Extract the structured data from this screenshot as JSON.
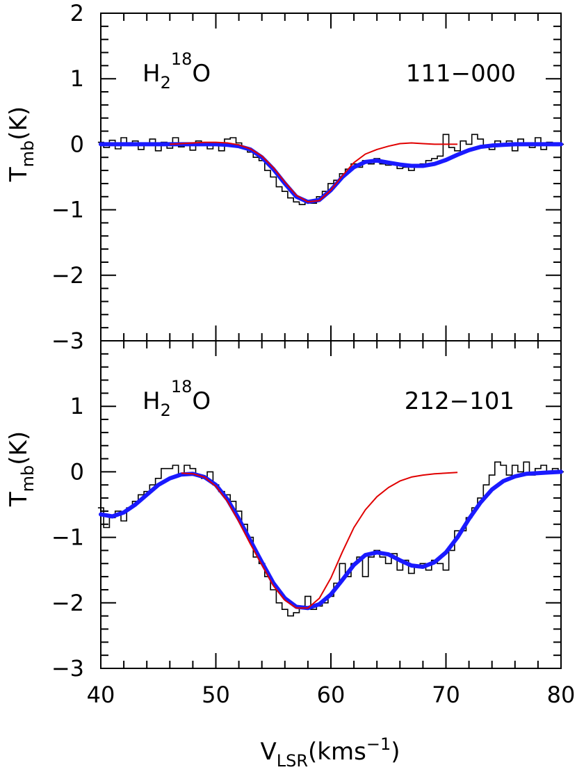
{
  "figure": {
    "xlabel": {
      "main": "V",
      "sub": "LSR",
      "paren_open": "(kms",
      "sup": "−1",
      "paren_close": ")"
    },
    "ylabel": {
      "main": "T",
      "sub": "mb",
      "rest": "(K)"
    },
    "x_tick_labels": [
      "40",
      "50",
      "60",
      "70",
      "80"
    ],
    "colors": {
      "observed": "#000000",
      "fit_total": "#1a1aff",
      "fit_component": "#e00000",
      "frame": "#000000"
    }
  },
  "chart_data": [
    {
      "type": "line",
      "panel": "top",
      "molecule": {
        "base": "H",
        "sub": "2",
        "sup": "18",
        "tail": "O"
      },
      "transition": "111−000",
      "xlim": [
        40,
        80
      ],
      "ylim": [
        -3,
        2
      ],
      "y_tick_labels": [
        "2",
        "1",
        "0",
        "−1",
        "−2",
        "−3"
      ],
      "y_ticks": [
        2,
        1,
        0,
        -1,
        -2,
        -3
      ],
      "series": [
        {
          "style": "histogram",
          "x": [
            40,
            40.5,
            41,
            41.5,
            42,
            42.5,
            43,
            43.5,
            44,
            44.5,
            45,
            45.5,
            46,
            46.5,
            47,
            47.5,
            48,
            48.5,
            49,
            49.5,
            50,
            50.5,
            51,
            51.5,
            52,
            52.5,
            53,
            53.5,
            54,
            54.5,
            55,
            55.5,
            56,
            56.5,
            57,
            57.5,
            58,
            58.5,
            59,
            59.5,
            60,
            60.5,
            61,
            61.5,
            62,
            62.5,
            63,
            63.5,
            64,
            64.5,
            65,
            65.5,
            66,
            66.5,
            67,
            67.5,
            68,
            68.5,
            69,
            69.5,
            70,
            70.5,
            71,
            71.5,
            72,
            72.5,
            73,
            73.5,
            74,
            74.5,
            75,
            75.5,
            76,
            76.5,
            77,
            77.5,
            78,
            78.5,
            79,
            79.5,
            80
          ],
          "y": [
            0.03,
            -0.05,
            0.06,
            -0.07,
            0.1,
            -0.02,
            0.05,
            -0.08,
            0.0,
            0.08,
            -0.1,
            0.03,
            -0.06,
            0.1,
            -0.04,
            0.02,
            -0.09,
            0.05,
            0.0,
            -0.07,
            0.02,
            -0.1,
            0.08,
            0.1,
            0.02,
            -0.05,
            -0.12,
            -0.2,
            -0.25,
            -0.4,
            -0.5,
            -0.65,
            -0.72,
            -0.82,
            -0.88,
            -0.92,
            -0.88,
            -0.9,
            -0.8,
            -0.72,
            -0.6,
            -0.55,
            -0.45,
            -0.38,
            -0.3,
            -0.35,
            -0.25,
            -0.3,
            -0.22,
            -0.3,
            -0.32,
            -0.28,
            -0.37,
            -0.35,
            -0.4,
            -0.33,
            -0.3,
            -0.25,
            -0.22,
            -0.18,
            0.15,
            -0.05,
            -0.1,
            0.05,
            0.0,
            0.15,
            0.08,
            -0.05,
            -0.08,
            0.05,
            -0.02,
            0.05,
            -0.1,
            0.08,
            0.0,
            -0.05,
            0.1,
            -0.08,
            0.03,
            -0.02,
            0.0
          ]
        },
        {
          "style": "fit-total",
          "x": [
            40,
            41,
            42,
            43,
            44,
            45,
            46,
            47,
            48,
            49,
            50,
            51,
            52,
            53,
            54,
            55,
            56,
            57,
            58,
            59,
            60,
            61,
            62,
            63,
            64,
            65,
            66,
            67,
            68,
            69,
            70,
            71,
            72,
            73,
            74,
            75,
            76,
            77,
            78,
            79,
            80
          ],
          "y": [
            0,
            0,
            0,
            0,
            0,
            0,
            0,
            0,
            0,
            0,
            0,
            -0.01,
            -0.03,
            -0.08,
            -0.2,
            -0.38,
            -0.6,
            -0.8,
            -0.88,
            -0.85,
            -0.7,
            -0.5,
            -0.35,
            -0.27,
            -0.25,
            -0.28,
            -0.31,
            -0.33,
            -0.33,
            -0.3,
            -0.24,
            -0.16,
            -0.09,
            -0.04,
            -0.02,
            -0.01,
            0,
            0,
            0,
            0,
            0
          ]
        },
        {
          "style": "fit-component",
          "x": [
            46,
            47,
            48,
            49,
            50,
            51,
            52,
            53,
            54,
            55,
            56,
            57,
            58,
            59,
            60,
            61,
            62,
            63,
            64,
            65,
            66,
            67,
            68,
            69,
            70,
            71
          ],
          "y": [
            0.0,
            0.01,
            0.02,
            0.03,
            0.03,
            0.02,
            -0.01,
            -0.07,
            -0.18,
            -0.36,
            -0.58,
            -0.78,
            -0.88,
            -0.86,
            -0.7,
            -0.48,
            -0.28,
            -0.15,
            -0.08,
            -0.03,
            0.01,
            0.02,
            0.01,
            0.0,
            0.0,
            0.0
          ]
        }
      ]
    },
    {
      "type": "line",
      "panel": "bottom",
      "molecule": {
        "base": "H",
        "sub": "2",
        "sup": "18",
        "tail": "O"
      },
      "transition": "212−101",
      "xlim": [
        40,
        80
      ],
      "ylim": [
        -3,
        2
      ],
      "y_tick_labels": [
        "1",
        "0",
        "−1",
        "−2",
        "−3"
      ],
      "y_ticks": [
        1,
        0,
        -1,
        -2,
        -3
      ],
      "series": [
        {
          "style": "histogram",
          "x": [
            40,
            40.5,
            41,
            41.5,
            42,
            42.5,
            43,
            43.5,
            44,
            44.5,
            45,
            45.5,
            46,
            46.5,
            47,
            47.5,
            48,
            48.5,
            49,
            49.5,
            50,
            50.5,
            51,
            51.5,
            52,
            52.5,
            53,
            53.5,
            54,
            54.5,
            55,
            55.5,
            56,
            56.5,
            57,
            57.5,
            58,
            58.5,
            59,
            59.5,
            60,
            60.5,
            61,
            61.5,
            62,
            62.5,
            63,
            63.5,
            64,
            64.5,
            65,
            65.5,
            66,
            66.5,
            67,
            67.5,
            68,
            68.5,
            69,
            69.5,
            70,
            70.5,
            71,
            71.5,
            72,
            72.5,
            73,
            73.5,
            74,
            74.5,
            75,
            75.5,
            76,
            76.5,
            77,
            77.5,
            78,
            78.5,
            79,
            79.5,
            80
          ],
          "y": [
            -0.55,
            -0.85,
            -0.7,
            -0.6,
            -0.75,
            -0.55,
            -0.45,
            -0.35,
            -0.3,
            -0.2,
            -0.1,
            0.05,
            0.05,
            0.1,
            -0.05,
            0.1,
            0.05,
            -0.05,
            -0.1,
            0.0,
            -0.2,
            -0.3,
            -0.35,
            -0.45,
            -0.6,
            -0.8,
            -1.0,
            -1.3,
            -1.4,
            -1.6,
            -1.8,
            -2.0,
            -2.1,
            -2.2,
            -2.15,
            -2.05,
            -1.9,
            -2.1,
            -2.05,
            -2.0,
            -1.9,
            -1.7,
            -1.4,
            -1.6,
            -1.4,
            -1.3,
            -1.6,
            -1.3,
            -1.2,
            -1.3,
            -1.4,
            -1.25,
            -1.5,
            -1.35,
            -1.55,
            -1.45,
            -1.4,
            -1.5,
            -1.35,
            -1.4,
            -1.5,
            -1.2,
            -0.9,
            -0.9,
            -0.7,
            -0.55,
            -0.4,
            -0.2,
            -0.05,
            0.15,
            0.1,
            -0.05,
            0.1,
            0.0,
            0.15,
            -0.05,
            0.05,
            0.1,
            0.0,
            0.05,
            0.0
          ]
        },
        {
          "style": "fit-total",
          "x": [
            40,
            41,
            42,
            43,
            44,
            45,
            46,
            47,
            48,
            49,
            50,
            51,
            52,
            53,
            54,
            55,
            56,
            57,
            58,
            59,
            60,
            61,
            62,
            63,
            64,
            65,
            66,
            67,
            68,
            69,
            70,
            71,
            72,
            73,
            74,
            75,
            76,
            77,
            78,
            79,
            80
          ],
          "y": [
            -0.65,
            -0.68,
            -0.62,
            -0.5,
            -0.35,
            -0.2,
            -0.1,
            -0.04,
            -0.03,
            -0.08,
            -0.2,
            -0.42,
            -0.72,
            -1.05,
            -1.38,
            -1.7,
            -1.93,
            -2.06,
            -2.08,
            -2.02,
            -1.87,
            -1.65,
            -1.42,
            -1.27,
            -1.23,
            -1.26,
            -1.35,
            -1.43,
            -1.45,
            -1.38,
            -1.23,
            -1.0,
            -0.72,
            -0.47,
            -0.27,
            -0.14,
            -0.07,
            -0.03,
            -0.02,
            -0.01,
            0
          ]
        },
        {
          "style": "fit-component",
          "x": [
            47,
            48,
            49,
            50,
            51,
            52,
            53,
            54,
            55,
            56,
            57,
            58,
            59,
            60,
            61,
            62,
            63,
            64,
            65,
            66,
            67,
            68,
            69,
            70,
            71
          ],
          "y": [
            -0.02,
            -0.03,
            -0.08,
            -0.22,
            -0.45,
            -0.76,
            -1.1,
            -1.42,
            -1.74,
            -1.96,
            -2.08,
            -2.08,
            -1.93,
            -1.62,
            -1.22,
            -0.85,
            -0.58,
            -0.38,
            -0.24,
            -0.14,
            -0.08,
            -0.05,
            -0.03,
            -0.02,
            -0.01
          ]
        }
      ]
    }
  ]
}
